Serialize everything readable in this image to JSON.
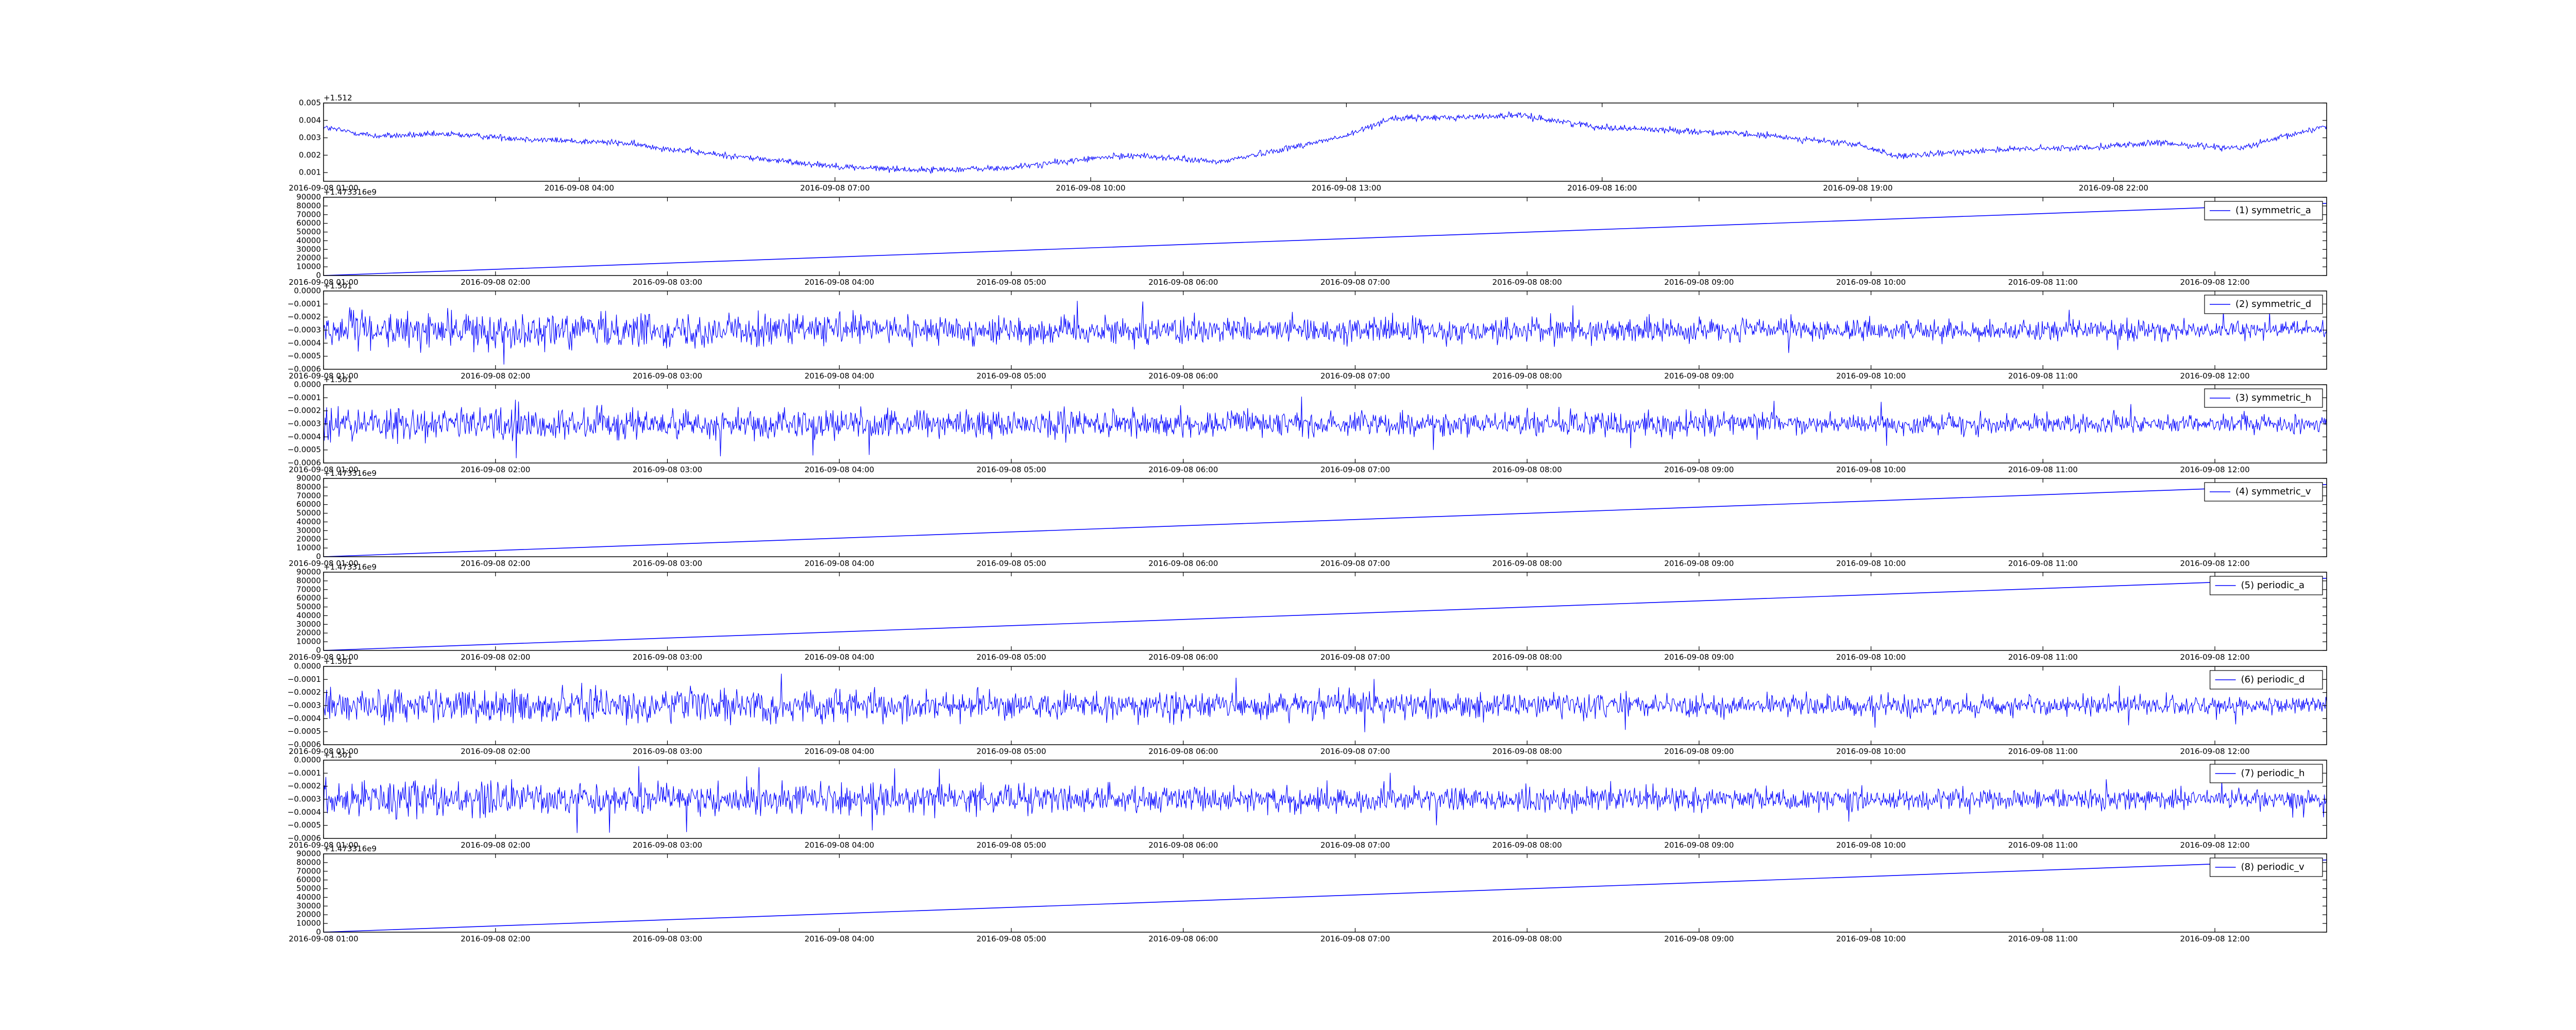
{
  "colors": {
    "series": "#0000ff",
    "axes": "#000000",
    "background": "#ffffff"
  },
  "chart_data": [
    {
      "type": "line",
      "title": "",
      "xlabel": "",
      "ylabel": "",
      "y_offset": "+1.512",
      "xtick_labels": [
        "2016-09-08 01:00",
        "2016-09-08 04:00",
        "2016-09-08 07:00",
        "2016-09-08 10:00",
        "2016-09-08 13:00",
        "2016-09-08 16:00",
        "2016-09-08 19:00",
        "2016-09-08 22:00"
      ],
      "xlim_hours": [
        1.0,
        24.5
      ],
      "ytick_labels": [
        "0.001",
        "0.002",
        "0.003",
        "0.004",
        "0.005"
      ],
      "ytick_values": [
        0.001,
        0.002,
        0.003,
        0.004,
        0.005
      ],
      "ylim": [
        0.0005,
        0.005
      ],
      "legend": null,
      "shape": "baseline",
      "noise": 0.00022,
      "trend": [
        [
          1.0,
          0.0036
        ],
        [
          1.6,
          0.0031
        ],
        [
          2.5,
          0.0032
        ],
        [
          3.5,
          0.0029
        ],
        [
          4.5,
          0.0027
        ],
        [
          5.5,
          0.0021
        ],
        [
          6.5,
          0.0016
        ],
        [
          7.2,
          0.0013
        ],
        [
          8.0,
          0.00115
        ],
        [
          9.0,
          0.00125
        ],
        [
          10.0,
          0.0018
        ],
        [
          10.5,
          0.002
        ],
        [
          11.5,
          0.0016
        ],
        [
          12.0,
          0.0021
        ],
        [
          13.0,
          0.0031
        ],
        [
          13.5,
          0.0041
        ],
        [
          14.5,
          0.0042
        ],
        [
          15.0,
          0.0043
        ],
        [
          16.0,
          0.0036
        ],
        [
          17.0,
          0.0034
        ],
        [
          18.0,
          0.0031
        ],
        [
          19.0,
          0.0026
        ],
        [
          19.5,
          0.0019
        ],
        [
          20.5,
          0.0023
        ],
        [
          21.5,
          0.0024
        ],
        [
          22.5,
          0.0027
        ],
        [
          23.5,
          0.0024
        ],
        [
          24.5,
          0.0037
        ]
      ]
    },
    {
      "type": "line",
      "y_offset": "+1.473316e9",
      "xtick_labels": [
        "2016-09-08 01:00",
        "2016-09-08 02:00",
        "2016-09-08 03:00",
        "2016-09-08 04:00",
        "2016-09-08 05:00",
        "2016-09-08 06:00",
        "2016-09-08 07:00",
        "2016-09-08 08:00",
        "2016-09-08 09:00",
        "2016-09-08 10:00",
        "2016-09-08 11:00",
        "2016-09-08 12:00"
      ],
      "xlim_hours": [
        1.0,
        12.65
      ],
      "ytick_labels": [
        "0",
        "10000",
        "20000",
        "30000",
        "40000",
        "50000",
        "60000",
        "70000",
        "80000",
        "90000"
      ],
      "ytick_values": [
        0,
        10000,
        20000,
        30000,
        40000,
        50000,
        60000,
        70000,
        80000,
        90000
      ],
      "ylim": [
        0,
        90000
      ],
      "legend": "(1) symmetric_a",
      "legend_position": "top-right",
      "shape": "linear",
      "x": [
        1.0,
        12.65
      ],
      "y": [
        0,
        83000
      ]
    },
    {
      "type": "line",
      "y_offset": "+1.501",
      "xtick_labels": [
        "2016-09-08 01:00",
        "2016-09-08 02:00",
        "2016-09-08 03:00",
        "2016-09-08 04:00",
        "2016-09-08 05:00",
        "2016-09-08 06:00",
        "2016-09-08 07:00",
        "2016-09-08 08:00",
        "2016-09-08 09:00",
        "2016-09-08 10:00",
        "2016-09-08 11:00",
        "2016-09-08 12:00"
      ],
      "xlim_hours": [
        1.0,
        12.65
      ],
      "ytick_labels": [
        "−0.0006",
        "−0.0005",
        "−0.0004",
        "−0.0003",
        "−0.0002",
        "−0.0001",
        "0.0000"
      ],
      "ytick_values": [
        -0.0006,
        -0.0005,
        -0.0004,
        -0.0003,
        -0.0002,
        -0.0001,
        0.0
      ],
      "ylim": [
        -0.0006,
        0.0
      ],
      "legend": "(2) symmetric_d",
      "legend_position": "top-right",
      "shape": "noise",
      "center": -0.0003,
      "amplitude": 0.00012,
      "amplitude_end": 6e-05
    },
    {
      "type": "line",
      "y_offset": "+1.501",
      "xtick_labels": [
        "2016-09-08 01:00",
        "2016-09-08 02:00",
        "2016-09-08 03:00",
        "2016-09-08 04:00",
        "2016-09-08 05:00",
        "2016-09-08 06:00",
        "2016-09-08 07:00",
        "2016-09-08 08:00",
        "2016-09-08 09:00",
        "2016-09-08 10:00",
        "2016-09-08 11:00",
        "2016-09-08 12:00"
      ],
      "xlim_hours": [
        1.0,
        12.65
      ],
      "ytick_labels": [
        "−0.0006",
        "−0.0005",
        "−0.0004",
        "−0.0003",
        "−0.0002",
        "−0.0001",
        "0.0000"
      ],
      "ytick_values": [
        -0.0006,
        -0.0005,
        -0.0004,
        -0.0003,
        -0.0002,
        -0.0001,
        0.0
      ],
      "ylim": [
        -0.0006,
        0.0
      ],
      "legend": "(3) symmetric_h",
      "legend_position": "top-right",
      "shape": "noise",
      "center": -0.0003,
      "amplitude": 0.00012,
      "amplitude_end": 6e-05
    },
    {
      "type": "line",
      "y_offset": "+1.473316e9",
      "xtick_labels": [
        "2016-09-08 01:00",
        "2016-09-08 02:00",
        "2016-09-08 03:00",
        "2016-09-08 04:00",
        "2016-09-08 05:00",
        "2016-09-08 06:00",
        "2016-09-08 07:00",
        "2016-09-08 08:00",
        "2016-09-08 09:00",
        "2016-09-08 10:00",
        "2016-09-08 11:00",
        "2016-09-08 12:00"
      ],
      "xlim_hours": [
        1.0,
        12.65
      ],
      "ytick_labels": [
        "0",
        "10000",
        "20000",
        "30000",
        "40000",
        "50000",
        "60000",
        "70000",
        "80000",
        "90000"
      ],
      "ytick_values": [
        0,
        10000,
        20000,
        30000,
        40000,
        50000,
        60000,
        70000,
        80000,
        90000
      ],
      "ylim": [
        0,
        90000
      ],
      "legend": "(4) symmetric_v",
      "legend_position": "top-right",
      "shape": "linear",
      "x": [
        1.0,
        12.65
      ],
      "y": [
        0,
        83000
      ]
    },
    {
      "type": "line",
      "y_offset": "+1.473316e9",
      "xtick_labels": [
        "2016-09-08 01:00",
        "2016-09-08 02:00",
        "2016-09-08 03:00",
        "2016-09-08 04:00",
        "2016-09-08 05:00",
        "2016-09-08 06:00",
        "2016-09-08 07:00",
        "2016-09-08 08:00",
        "2016-09-08 09:00",
        "2016-09-08 10:00",
        "2016-09-08 11:00",
        "2016-09-08 12:00"
      ],
      "xlim_hours": [
        1.0,
        12.65
      ],
      "ytick_labels": [
        "0",
        "10000",
        "20000",
        "30000",
        "40000",
        "50000",
        "60000",
        "70000",
        "80000",
        "90000"
      ],
      "ytick_values": [
        0,
        10000,
        20000,
        30000,
        40000,
        50000,
        60000,
        70000,
        80000,
        90000
      ],
      "ylim": [
        0,
        90000
      ],
      "legend": "(5) periodic_a",
      "legend_position": "top-right",
      "shape": "linear",
      "x": [
        1.0,
        12.65
      ],
      "y": [
        0,
        83000
      ]
    },
    {
      "type": "line",
      "y_offset": "+1.501",
      "xtick_labels": [
        "2016-09-08 01:00",
        "2016-09-08 02:00",
        "2016-09-08 03:00",
        "2016-09-08 04:00",
        "2016-09-08 05:00",
        "2016-09-08 06:00",
        "2016-09-08 07:00",
        "2016-09-08 08:00",
        "2016-09-08 09:00",
        "2016-09-08 10:00",
        "2016-09-08 11:00",
        "2016-09-08 12:00"
      ],
      "xlim_hours": [
        1.0,
        12.65
      ],
      "ytick_labels": [
        "−0.0006",
        "−0.0005",
        "−0.0004",
        "−0.0003",
        "−0.0002",
        "−0.0001",
        "0.0000"
      ],
      "ytick_values": [
        -0.0006,
        -0.0005,
        -0.0004,
        -0.0003,
        -0.0002,
        -0.0001,
        0.0
      ],
      "ylim": [
        -0.0006,
        0.0
      ],
      "legend": "(6) periodic_d",
      "legend_position": "top-right",
      "shape": "noise",
      "center": -0.0003,
      "amplitude": 0.00012,
      "amplitude_end": 6e-05
    },
    {
      "type": "line",
      "y_offset": "+1.501",
      "xtick_labels": [
        "2016-09-08 01:00",
        "2016-09-08 02:00",
        "2016-09-08 03:00",
        "2016-09-08 04:00",
        "2016-09-08 05:00",
        "2016-09-08 06:00",
        "2016-09-08 07:00",
        "2016-09-08 08:00",
        "2016-09-08 09:00",
        "2016-09-08 10:00",
        "2016-09-08 11:00",
        "2016-09-08 12:00"
      ],
      "xlim_hours": [
        1.0,
        12.65
      ],
      "ytick_labels": [
        "−0.0006",
        "−0.0005",
        "−0.0004",
        "−0.0003",
        "−0.0002",
        "−0.0001",
        "0.0000"
      ],
      "ytick_values": [
        -0.0006,
        -0.0005,
        -0.0004,
        -0.0003,
        -0.0002,
        -0.0001,
        0.0
      ],
      "ylim": [
        -0.0006,
        0.0
      ],
      "legend": "(7) periodic_h",
      "legend_position": "top-right",
      "shape": "noise",
      "center": -0.0003,
      "amplitude": 0.00012,
      "amplitude_end": 6e-05
    },
    {
      "type": "line",
      "y_offset": "+1.473316e9",
      "xtick_labels": [
        "2016-09-08 01:00",
        "2016-09-08 02:00",
        "2016-09-08 03:00",
        "2016-09-08 04:00",
        "2016-09-08 05:00",
        "2016-09-08 06:00",
        "2016-09-08 07:00",
        "2016-09-08 08:00",
        "2016-09-08 09:00",
        "2016-09-08 10:00",
        "2016-09-08 11:00",
        "2016-09-08 12:00"
      ],
      "xlim_hours": [
        1.0,
        12.65
      ],
      "ytick_labels": [
        "0",
        "10000",
        "20000",
        "30000",
        "40000",
        "50000",
        "60000",
        "70000",
        "80000",
        "90000"
      ],
      "ytick_values": [
        0,
        10000,
        20000,
        30000,
        40000,
        50000,
        60000,
        70000,
        80000,
        90000
      ],
      "ylim": [
        0,
        90000
      ],
      "legend": "(8) periodic_v",
      "legend_position": "top-right",
      "shape": "linear",
      "x": [
        1.0,
        12.65
      ],
      "y": [
        0,
        83000
      ]
    }
  ]
}
